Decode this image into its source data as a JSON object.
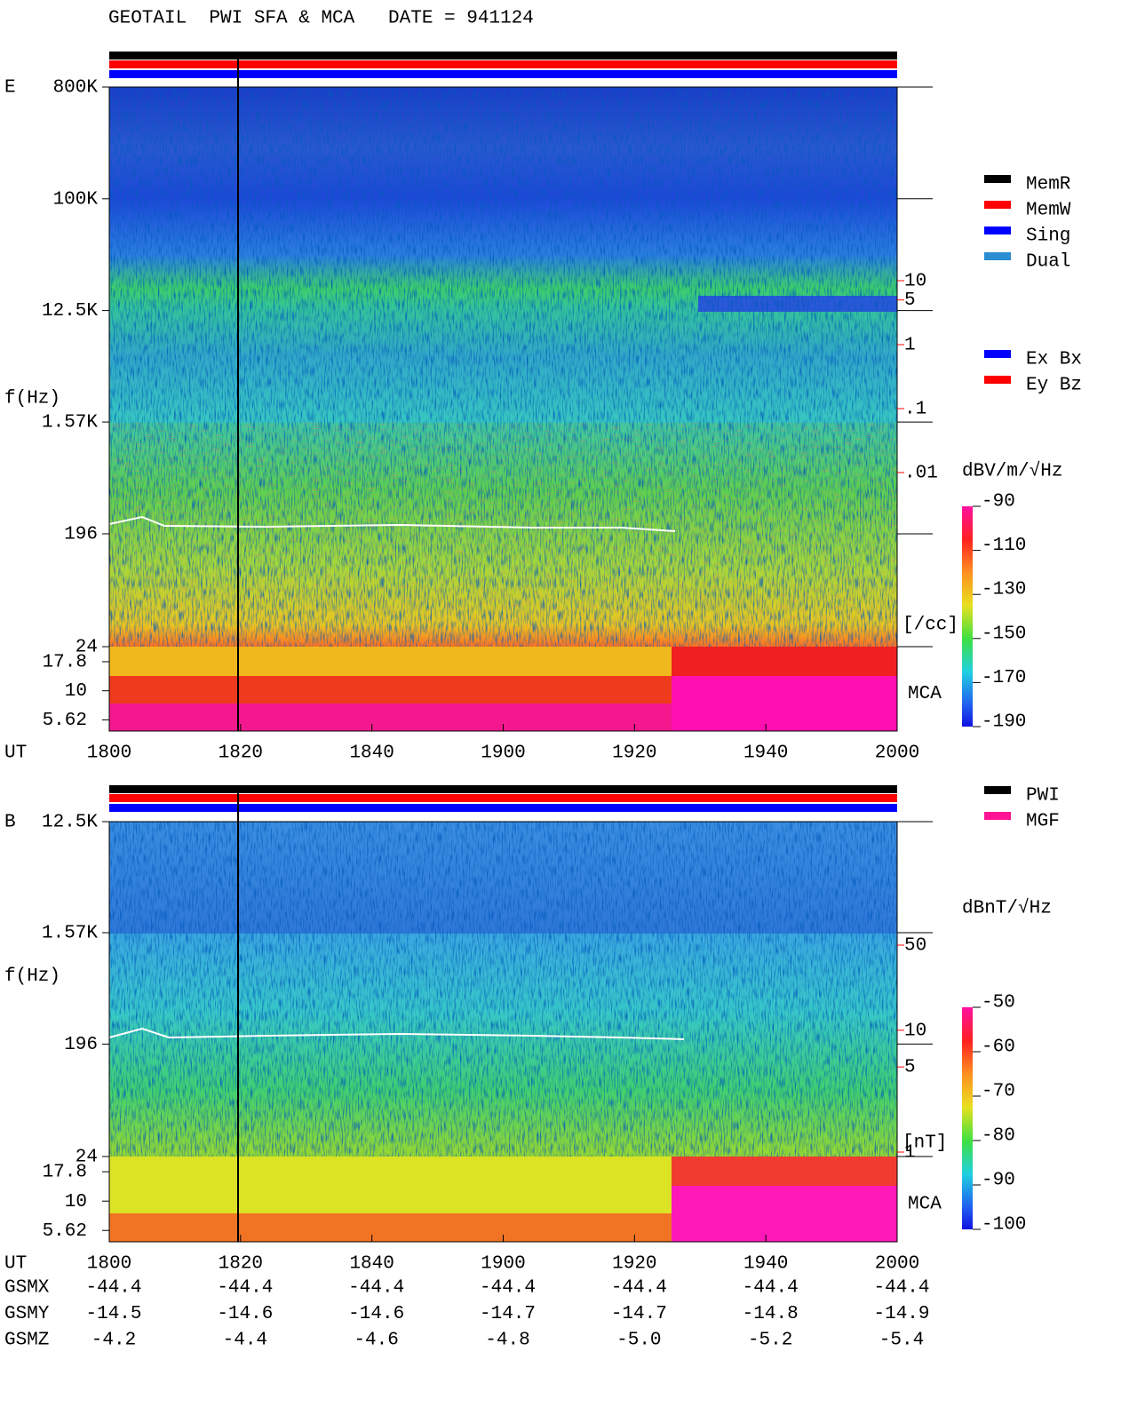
{
  "title": "GEOTAIL  PWI SFA & MCA   DATE = 941124",
  "chart_data": [
    {
      "type": "spectrogram",
      "panel_label": "E",
      "ylabel": "f(Hz)",
      "xlabel": "UT",
      "log_y": true,
      "ylim": [
        24,
        800000
      ],
      "yticks": [
        {
          "value": 800000,
          "label": "800K"
        },
        {
          "value": 100000,
          "label": "100K"
        },
        {
          "value": 12500,
          "label": "12.5K"
        },
        {
          "value": 1570,
          "label": "1.57K"
        },
        196,
        24
      ],
      "mca_label": "MCA",
      "mca_lim": [
        4.5,
        24
      ],
      "mca_ticks": [
        17.8,
        10,
        5.62
      ],
      "xticks": [
        "1800",
        "1820",
        "1840",
        "1900",
        "1920",
        "1940",
        "2000"
      ],
      "legend": [
        {
          "name": "MemR",
          "color": "#000000"
        },
        {
          "name": "MemW",
          "color": "#ff0000"
        },
        {
          "name": "Sing",
          "color": "#0000ff"
        },
        {
          "name": "Dual",
          "color": "#2a8ed0"
        }
      ],
      "legend2": [
        {
          "name": "Ex Bx",
          "color": "#0000ff"
        },
        {
          "name": "Ey Bz",
          "color": "#ff0000"
        }
      ],
      "colorbar": {
        "label": "dBV/m/√Hz",
        "lim": [
          -190,
          -90
        ],
        "ticks": [
          -90,
          -110,
          -130,
          -150,
          -170,
          -190
        ]
      },
      "density": {
        "lim": [
          0.01,
          10
        ],
        "unit": "[/cc]",
        "ticks": [
          10,
          5,
          1,
          {
            "value": 0.1,
            "label": ".1"
          },
          {
            "value": 0.01,
            "label": ".01"
          }
        ]
      }
    },
    {
      "type": "spectrogram",
      "panel_label": "B",
      "ylabel": "f(Hz)",
      "xlabel": "UT",
      "log_y": true,
      "ylim": [
        24,
        12500
      ],
      "yticks": [
        {
          "value": 12500,
          "label": "12.5K"
        },
        {
          "value": 1570,
          "label": "1.57K"
        },
        196,
        24
      ],
      "mca_label": "MCA",
      "mca_lim": [
        4.5,
        24
      ],
      "mca_ticks": [
        17.8,
        10,
        5.62
      ],
      "xticks": [
        "1800",
        "1820",
        "1840",
        "1900",
        "1920",
        "1940",
        "2000"
      ],
      "legend": [
        {
          "name": "PWI",
          "color": "#000000"
        },
        {
          "name": "MGF",
          "color": "#ff1493"
        }
      ],
      "colorbar": {
        "label": "dBnT/√Hz",
        "lim": [
          -100,
          -50
        ],
        "ticks": [
          -50,
          -60,
          -70,
          -80,
          -90,
          -100
        ]
      },
      "density": {
        "lim": [
          1,
          50
        ],
        "unit": "[nT]",
        "ticks": [
          50,
          10,
          5,
          1
        ]
      }
    }
  ],
  "orbit": {
    "rows": [
      {
        "name": "GSMX",
        "values": [
          -44.4,
          -44.4,
          -44.4,
          -44.4,
          -44.4,
          -44.4,
          -44.4
        ]
      },
      {
        "name": "GSMY",
        "values": [
          -14.5,
          -14.6,
          -14.6,
          -14.7,
          -14.7,
          -14.8,
          -14.9
        ]
      },
      {
        "name": "GSMZ",
        "values": [
          -4.2,
          -4.4,
          -4.6,
          -4.8,
          {
            "value": -5,
            "label": "-5.0"
          },
          -5.2,
          -5.4
        ]
      }
    ]
  }
}
